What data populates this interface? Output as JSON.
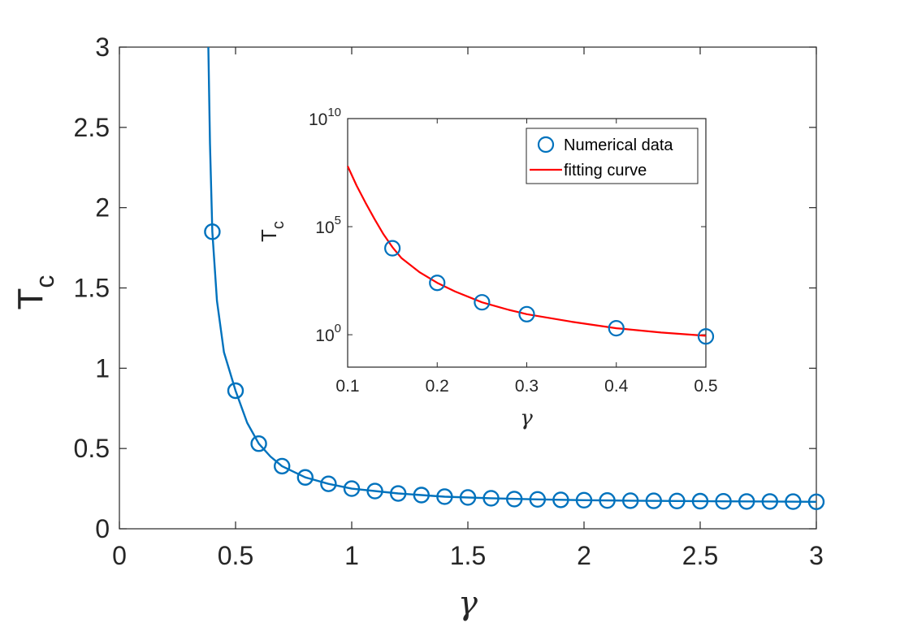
{
  "colors": {
    "main_series": "#0072BD",
    "fit_curve": "#FF0000",
    "axes": "#262626",
    "background": "#FFFFFF"
  },
  "chart_data": [
    {
      "id": "main",
      "type": "line",
      "title": "",
      "xlabel": "γ",
      "ylabel_base": "T",
      "ylabel_sub": "c",
      "xlim": [
        0,
        3
      ],
      "ylim": [
        0,
        3
      ],
      "xticks": [
        0,
        0.5,
        1,
        1.5,
        2,
        2.5,
        3
      ],
      "yticks": [
        0,
        0.5,
        1,
        1.5,
        2,
        2.5,
        3
      ],
      "xtick_labels": [
        "0",
        "0.5",
        "1",
        "1.5",
        "2",
        "2.5",
        "3"
      ],
      "ytick_labels": [
        "0",
        "0.5",
        "1",
        "1.5",
        "2",
        "2.5",
        "3"
      ],
      "grid": false,
      "series": [
        {
          "name": "Numerical data",
          "marker": "circle",
          "x": [
            0.4,
            0.5,
            0.6,
            0.7,
            0.8,
            0.9,
            1.0,
            1.1,
            1.2,
            1.3,
            1.4,
            1.5,
            1.6,
            1.7,
            1.8,
            1.9,
            2.0,
            2.1,
            2.2,
            2.3,
            2.4,
            2.5,
            2.6,
            2.7,
            2.8,
            2.9,
            3.0
          ],
          "y": [
            1.85,
            0.86,
            0.53,
            0.39,
            0.32,
            0.28,
            0.25,
            0.235,
            0.22,
            0.21,
            0.2,
            0.195,
            0.19,
            0.185,
            0.183,
            0.18,
            0.178,
            0.176,
            0.175,
            0.174,
            0.173,
            0.172,
            0.171,
            0.17,
            0.17,
            0.169,
            0.168
          ]
        },
        {
          "name": "curve",
          "marker": "none",
          "x": [
            0.383,
            0.39,
            0.4,
            0.42,
            0.45,
            0.5,
            0.55,
            0.6,
            0.65,
            0.7,
            0.8,
            0.9,
            1.0,
            1.2,
            1.4,
            1.6,
            1.8,
            2.0,
            2.2,
            2.4,
            2.6,
            2.8,
            3.0
          ],
          "y": [
            3.0,
            2.4,
            1.85,
            1.42,
            1.1,
            0.86,
            0.66,
            0.53,
            0.45,
            0.39,
            0.32,
            0.28,
            0.25,
            0.22,
            0.2,
            0.19,
            0.183,
            0.178,
            0.175,
            0.173,
            0.171,
            0.17,
            0.168
          ]
        }
      ]
    },
    {
      "id": "inset",
      "type": "scatter",
      "title": "",
      "xlabel": "γ",
      "ylabel_base": "T",
      "ylabel_sub": "c",
      "xlim": [
        0.1,
        0.5
      ],
      "ylim_log10": [
        -1.5,
        10
      ],
      "yscale": "log",
      "xticks": [
        0.1,
        0.2,
        0.3,
        0.4,
        0.5
      ],
      "xtick_labels": [
        "0.1",
        "0.2",
        "0.3",
        "0.4",
        "0.5"
      ],
      "yticks_exp": [
        0,
        5,
        10
      ],
      "ytick_base": "10",
      "ytick_exponents": [
        "0",
        "5",
        "10"
      ],
      "grid": false,
      "legend_position": "top-right",
      "series": [
        {
          "name": "Numerical data",
          "marker": "circle",
          "x": [
            0.15,
            0.2,
            0.25,
            0.3,
            0.4,
            0.5
          ],
          "log10_y": [
            4.0,
            2.4,
            1.5,
            0.95,
            0.3,
            -0.08
          ]
        },
        {
          "name": "fitting curve",
          "marker": "none",
          "x": [
            0.1,
            0.11,
            0.12,
            0.13,
            0.14,
            0.15,
            0.16,
            0.18,
            0.2,
            0.22,
            0.25,
            0.28,
            0.3,
            0.35,
            0.4,
            0.45,
            0.5
          ],
          "log10_y": [
            7.8,
            6.9,
            6.1,
            5.35,
            4.65,
            4.05,
            3.55,
            2.9,
            2.4,
            2.0,
            1.5,
            1.15,
            0.95,
            0.6,
            0.3,
            0.1,
            -0.05
          ]
        }
      ],
      "legend": [
        {
          "label": "Numerical data",
          "marker": "circle"
        },
        {
          "label": "fitting curve",
          "marker": "line"
        }
      ]
    }
  ]
}
